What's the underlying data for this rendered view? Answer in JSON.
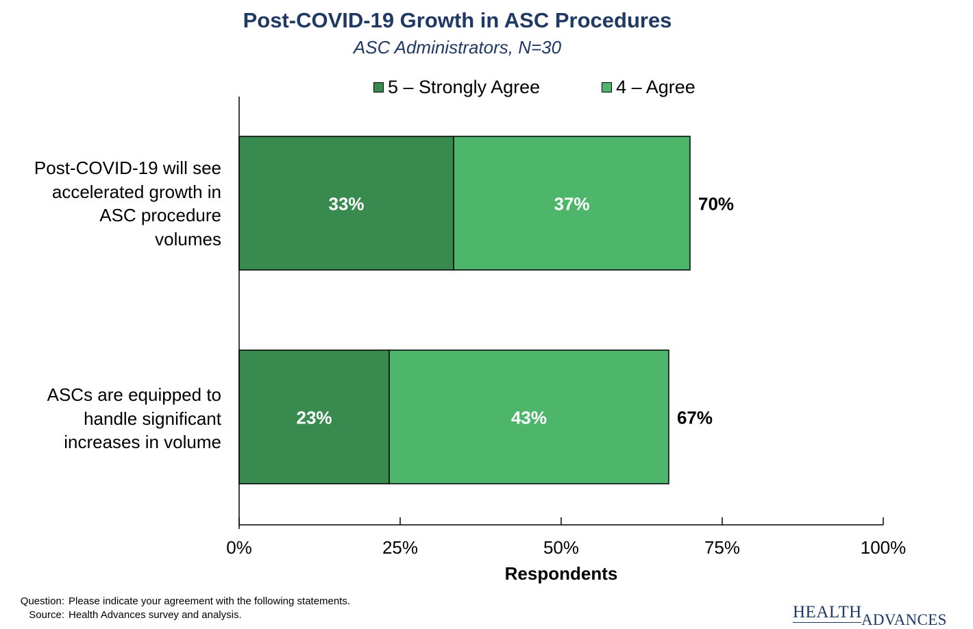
{
  "chart_data": {
    "type": "bar",
    "orientation": "horizontal",
    "stacked": true,
    "title": "Post-COVID-19 Growth in ASC Procedures",
    "subtitle": "ASC Administrators, N=30",
    "categories": [
      "Post-COVID-19 will see accelerated growth in ASC procedure volumes",
      "ASCs are equipped to handle significant increases in volume"
    ],
    "series": [
      {
        "name": "5 – Strongly Agree",
        "values": [
          33.3,
          23.3
        ],
        "labels": [
          "33%",
          "23%"
        ],
        "color": "#388a4e"
      },
      {
        "name": "4 – Agree",
        "values": [
          36.7,
          43.4
        ],
        "labels": [
          "37%",
          "43%"
        ],
        "color": "#4db66a"
      }
    ],
    "totals": [
      "70%",
      "67%"
    ],
    "xlabel": "Respondents",
    "ylabel": "",
    "xlim": [
      0,
      100
    ],
    "xticks": [
      0,
      25,
      50,
      75,
      100
    ],
    "xtick_labels": [
      "0%",
      "25%",
      "50%",
      "75%",
      "100%"
    ],
    "legend_position": "top",
    "grid": false
  },
  "category_lines": [
    [
      "Post-COVID-19 will see",
      "accelerated growth in",
      "ASC procedure",
      "volumes"
    ],
    [
      "ASCs are equipped to",
      "handle significant",
      "increases in volume"
    ]
  ],
  "footnotes": {
    "question_key": "Question:",
    "question_text": "Please indicate your agreement with the following statements.",
    "source_key": "Source:",
    "source_text": "Health Advances survey and analysis."
  },
  "logo": {
    "word1": "HEALTH",
    "word2": "ADVANCES",
    "color": "#1f3864"
  }
}
